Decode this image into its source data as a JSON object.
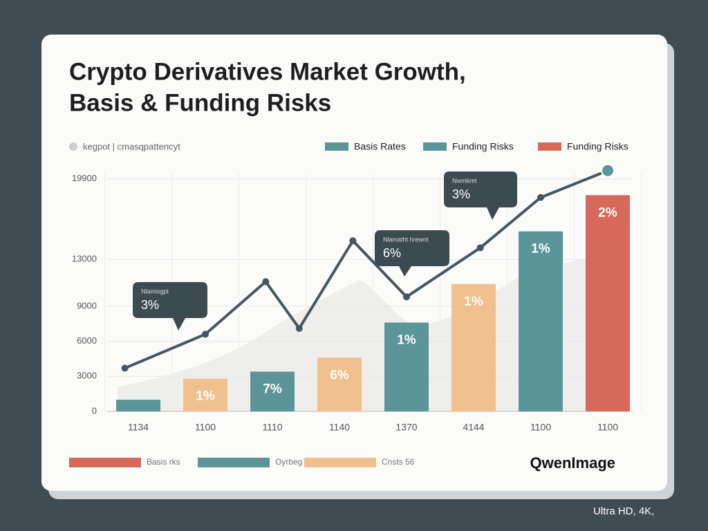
{
  "chart_data": {
    "type": "bar",
    "title": [
      "Crypto Derivatives Market Growth,",
      "Basis & Funding Risks"
    ],
    "subtitle": "kegpot | cmasqpattencyt",
    "legend": [
      {
        "name": "Basis Rates",
        "color": "#5b9597"
      },
      {
        "name": "Funding Risks",
        "color": "#5b9597"
      },
      {
        "name": "Funding Risks",
        "color": "#d7695a"
      }
    ],
    "categories": [
      "1134",
      "1100",
      "1110",
      "1140",
      "1370",
      "4144",
      "1100",
      "1100"
    ],
    "bars": {
      "values": [
        1000,
        2800,
        3400,
        4600,
        7600,
        10900,
        15400,
        18500
      ],
      "value_labels": [
        null,
        "1%",
        "7%",
        "6%",
        "1%",
        "1%",
        "1%",
        "2%"
      ],
      "colors": [
        "#5b9597",
        "#f0c08e",
        "#5b9597",
        "#f0c08e",
        "#5b9597",
        "#f0c08e",
        "#5b9597",
        "#d7695a"
      ]
    },
    "line": {
      "color": "#46575f",
      "x": [
        -0.2,
        1.0,
        1.9,
        2.4,
        3.2,
        4.0,
        5.1,
        6.0,
        7.0
      ],
      "values": [
        3700,
        6600,
        11100,
        7100,
        14600,
        9800,
        14000,
        18300,
        20600
      ]
    },
    "annotations": [
      {
        "label": "Nlamisgpt",
        "text": "3%"
      },
      {
        "label": "Nlamatht hrewnt",
        "text": "6%"
      },
      {
        "label": "Nwmkret",
        "text": "3%"
      }
    ],
    "ylim": [
      0,
      21000
    ],
    "yticks": [
      0,
      3000,
      6000,
      9000,
      13000,
      19900
    ],
    "grid": true,
    "bottom_legend": [
      {
        "name": "Basis rks",
        "color": "#d7695a"
      },
      {
        "name": "Oyrbeg",
        "color": "#5b9597"
      },
      {
        "name": "Cnsts 56",
        "color": "#f0c08e"
      }
    ],
    "watermark": "QwenImage",
    "caption": "Ultra HD, 4K,"
  }
}
